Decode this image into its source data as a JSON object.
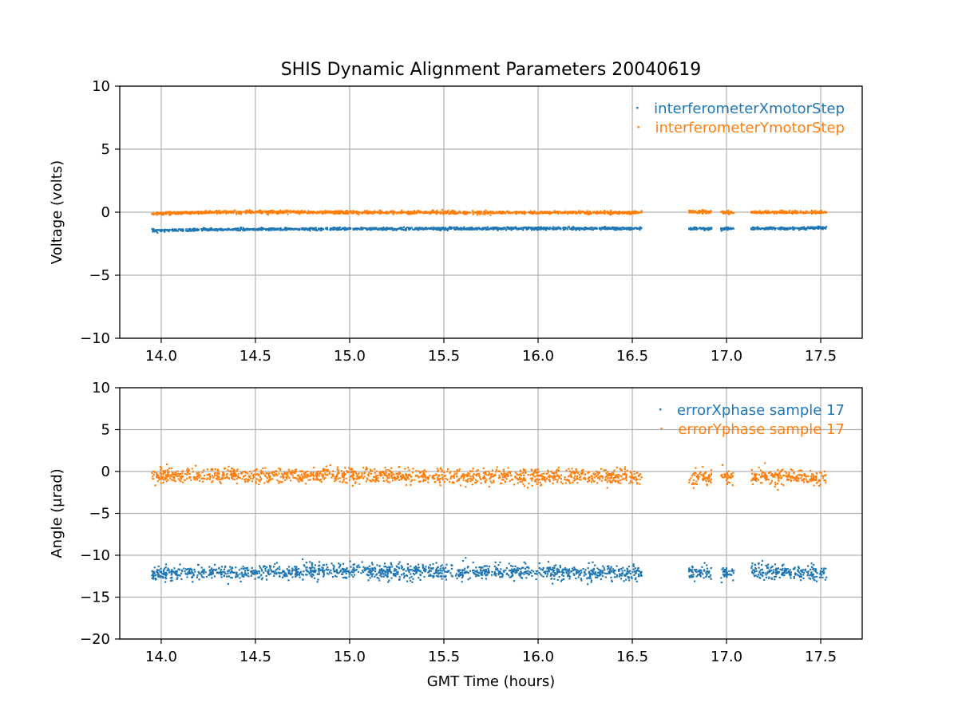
{
  "figure_title": "SHIS Dynamic Alignment Parameters 20040619",
  "colors": {
    "blue": "#1f77b4",
    "orange": "#ff7f0e",
    "grid": "#b0b0b0"
  },
  "chart_data": [
    {
      "type": "scatter",
      "title": "SHIS Dynamic Alignment Parameters 20040619",
      "xlabel": "",
      "ylabel": "Voltage (volts)",
      "xlim": [
        13.78,
        17.72
      ],
      "ylim": [
        -10,
        10
      ],
      "xticks": [
        14.0,
        14.5,
        15.0,
        15.5,
        16.0,
        16.5,
        17.0,
        17.5
      ],
      "xtick_labels": [
        "14.0",
        "14.5",
        "15.0",
        "15.5",
        "16.0",
        "16.5",
        "17.0",
        "17.5"
      ],
      "yticks": [
        -10,
        -5,
        0,
        5,
        10
      ],
      "ytick_labels": [
        "−10",
        "−5",
        "0",
        "5",
        "10"
      ],
      "grid": true,
      "legend_position": "top-right",
      "data_segments_hours": [
        [
          13.95,
          16.55
        ],
        [
          16.8,
          16.92
        ],
        [
          16.97,
          17.04
        ],
        [
          17.13,
          17.53
        ]
      ],
      "series": [
        {
          "name": "interferometerXmotorStep",
          "color": "#1f77b4",
          "x": [
            13.95,
            14.25,
            14.5,
            15.0,
            15.5,
            16.0,
            16.5,
            16.85,
            17.0,
            17.2,
            17.5
          ],
          "y": [
            -1.45,
            -1.38,
            -1.35,
            -1.32,
            -1.3,
            -1.28,
            -1.28,
            -1.3,
            -1.3,
            -1.28,
            -1.25
          ],
          "noise": 0.05
        },
        {
          "name": "interferometerYmotorStep",
          "color": "#ff7f0e",
          "x": [
            13.95,
            14.25,
            14.5,
            15.0,
            15.5,
            16.0,
            16.5,
            16.85,
            17.0,
            17.2,
            17.5
          ],
          "y": [
            -0.1,
            0.0,
            0.02,
            0.0,
            -0.02,
            -0.02,
            -0.03,
            0.05,
            -0.02,
            0.0,
            0.0
          ],
          "noise": 0.06
        }
      ]
    },
    {
      "type": "scatter",
      "title": "",
      "xlabel": "GMT Time (hours)",
      "ylabel": "Angle (μrad)",
      "xlim": [
        13.78,
        17.72
      ],
      "ylim": [
        -20,
        10
      ],
      "xticks": [
        14.0,
        14.5,
        15.0,
        15.5,
        16.0,
        16.5,
        17.0,
        17.5
      ],
      "xtick_labels": [
        "14.0",
        "14.5",
        "15.0",
        "15.5",
        "16.0",
        "16.5",
        "17.0",
        "17.5"
      ],
      "yticks": [
        -20,
        -15,
        -10,
        -5,
        0,
        5,
        10
      ],
      "ytick_labels": [
        "−20",
        "−15",
        "−10",
        "−5",
        "0",
        "5",
        "10"
      ],
      "grid": true,
      "legend_position": "top-right",
      "data_segments_hours": [
        [
          13.95,
          16.55
        ],
        [
          16.8,
          16.92
        ],
        [
          16.97,
          17.04
        ],
        [
          17.13,
          17.53
        ]
      ],
      "series": [
        {
          "name": "errorXphase sample 17",
          "color": "#1f77b4",
          "x": [
            13.95,
            14.25,
            14.5,
            15.0,
            15.5,
            16.0,
            16.5,
            16.85,
            17.0,
            17.2,
            17.5
          ],
          "y": [
            -12.2,
            -12.0,
            -12.0,
            -11.9,
            -12.0,
            -12.0,
            -12.1,
            -12.0,
            -12.1,
            -11.9,
            -12.1
          ],
          "noise": 0.45
        },
        {
          "name": "errorYphase sample 17",
          "color": "#ff7f0e",
          "x": [
            13.95,
            14.25,
            14.5,
            15.0,
            15.5,
            16.0,
            16.5,
            16.85,
            17.0,
            17.2,
            17.5
          ],
          "y": [
            -0.5,
            -0.4,
            -0.5,
            -0.5,
            -0.55,
            -0.6,
            -0.65,
            -0.7,
            -0.7,
            -0.6,
            -0.8
          ],
          "noise": 0.45
        }
      ]
    }
  ]
}
